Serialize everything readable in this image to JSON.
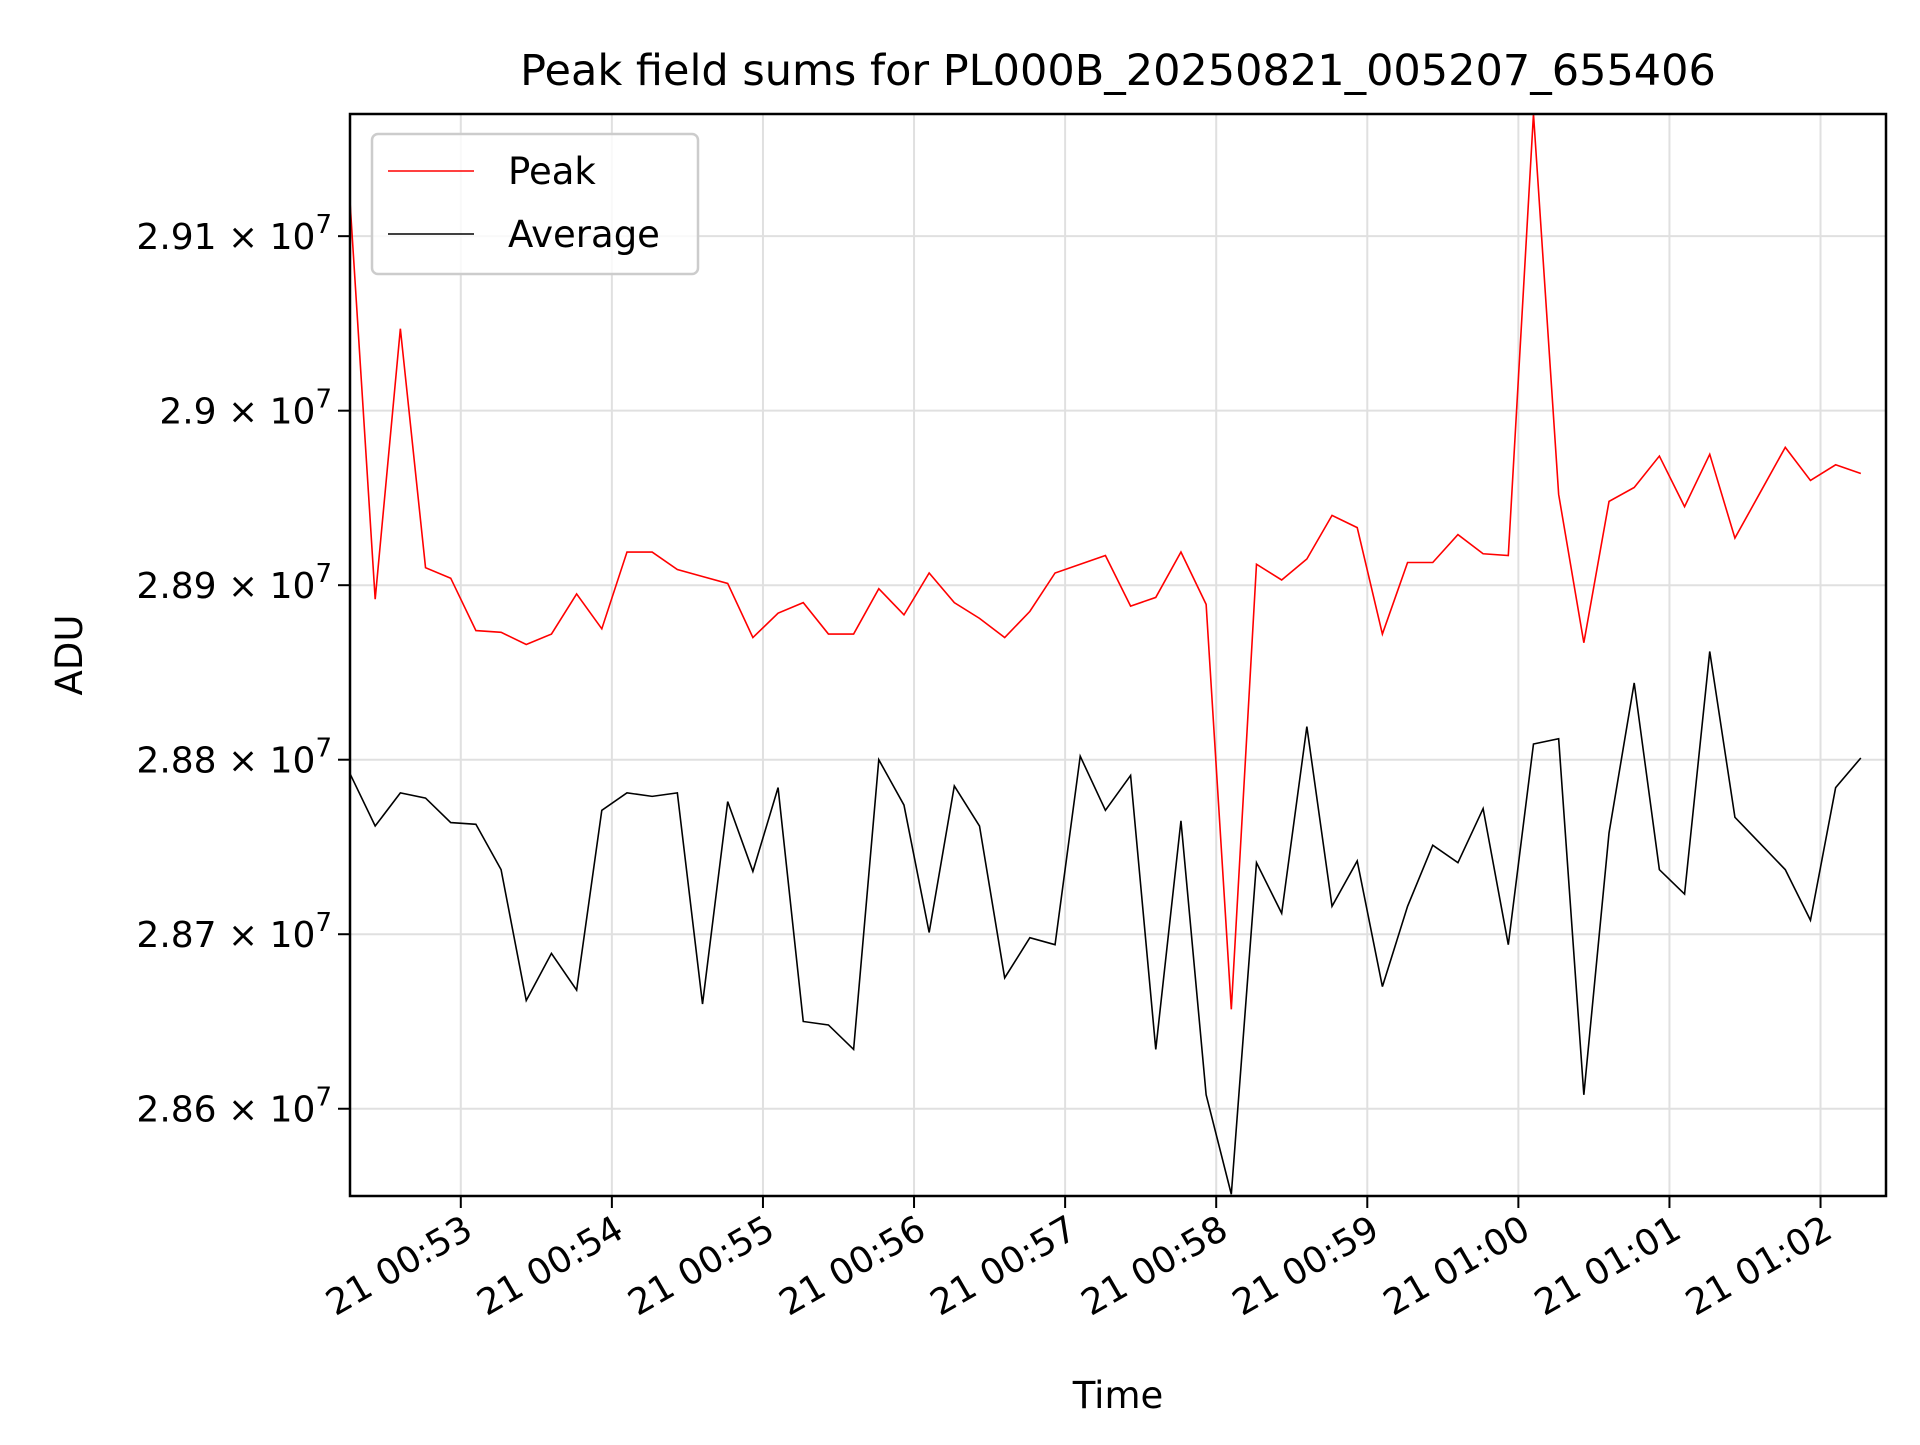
{
  "chart_data": {
    "type": "line",
    "title": "Peak field sums for PL000B_20250821_005207_655406",
    "xlabel": "Time",
    "ylabel": "ADU",
    "x_start": "21 00:52:16",
    "x_step_seconds": 10,
    "xlim": [
      "21 00:52:16",
      "21 01:02:26"
    ],
    "ylim": [
      28550000,
      29170000
    ],
    "x_ticks": [
      "21 00:53",
      "21 00:54",
      "21 00:55",
      "21 00:56",
      "21 00:57",
      "21 00:58",
      "21 00:59",
      "21 01:00",
      "21 01:01",
      "21 01:02"
    ],
    "y_ticks": [
      {
        "value": 28600000,
        "mantissa": "2.86",
        "base": "10",
        "exp": "7"
      },
      {
        "value": 28700000,
        "mantissa": "2.87",
        "base": "10",
        "exp": "7"
      },
      {
        "value": 28800000,
        "mantissa": "2.88",
        "base": "10",
        "exp": "7"
      },
      {
        "value": 28900000,
        "mantissa": "2.89",
        "base": "10",
        "exp": "7"
      },
      {
        "value": 29000000,
        "mantissa": "2.9",
        "base": "10",
        "exp": "7"
      },
      {
        "value": 29100000,
        "mantissa": "2.91",
        "base": "10",
        "exp": "7"
      }
    ],
    "grid": true,
    "legend_position": "upper-left",
    "series": [
      {
        "name": "Peak",
        "color": "#ff0000",
        "values": [
          29120000,
          28892000,
          29047000,
          28910000,
          28904000,
          28874000,
          28873000,
          28866000,
          28872000,
          28895000,
          28875000,
          28919000,
          28919000,
          28909000,
          28905000,
          28901000,
          28870000,
          28884000,
          28890000,
          28872000,
          28872000,
          28898000,
          28883000,
          28907000,
          28890000,
          28881000,
          28870000,
          28885000,
          28907000,
          28912000,
          28917000,
          28888000,
          28893000,
          28919000,
          28889000,
          28657000,
          28912000,
          28903000,
          28915000,
          28940000,
          28933000,
          28872000,
          28913000,
          28913000,
          28929000,
          28918000,
          28917000,
          29170000,
          28952000,
          28867000,
          28948000,
          28956000,
          28974000,
          28945000,
          28975000,
          28927000,
          28953000,
          28979000,
          28960000,
          28969000,
          28964000
        ]
      },
      {
        "name": "Average",
        "color": "#000000",
        "values": [
          28792000,
          28762000,
          28781000,
          28778000,
          28764000,
          28763000,
          28737000,
          28662000,
          28689000,
          28668000,
          28771000,
          28781000,
          28779000,
          28781000,
          28660000,
          28776000,
          28736000,
          28784000,
          28650000,
          28648000,
          28634000,
          28800000,
          28774000,
          28701000,
          28785000,
          28762000,
          28675000,
          28698000,
          28694000,
          28802000,
          28771000,
          28791000,
          28634000,
          28765000,
          28608000,
          28551000,
          28741000,
          28712000,
          28819000,
          28716000,
          28742000,
          28670000,
          28716000,
          28751000,
          28741000,
          28772000,
          28694000,
          28809000,
          28812000,
          28608000,
          28758000,
          28844000,
          28737000,
          28723000,
          28862000,
          28767000,
          28752000,
          28737000,
          28708000,
          28784000,
          28801000
        ]
      }
    ]
  }
}
